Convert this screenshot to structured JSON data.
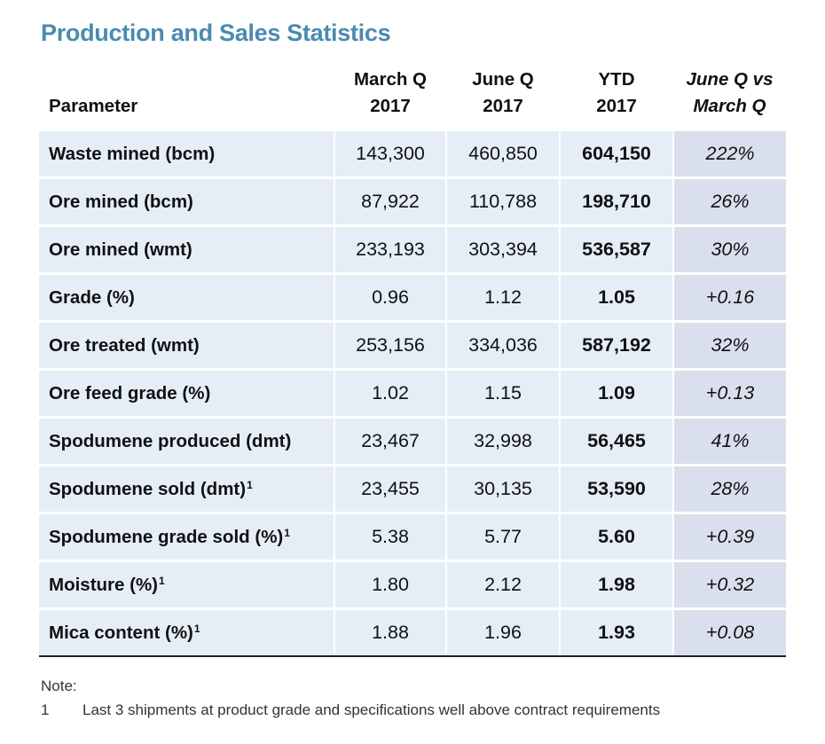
{
  "title": "Production and Sales Statistics",
  "table": {
    "headers": [
      {
        "lines": [
          "Parameter"
        ]
      },
      {
        "lines": [
          "March Q",
          "2017"
        ]
      },
      {
        "lines": [
          "June Q",
          "2017"
        ]
      },
      {
        "lines": [
          "YTD",
          "2017"
        ]
      },
      {
        "lines": [
          "June Q vs",
          "March Q"
        ]
      }
    ],
    "rows": [
      {
        "param": "Waste mined (bcm)",
        "sup": "",
        "march": "143,300",
        "june": "460,850",
        "ytd": "604,150",
        "vs": "222%"
      },
      {
        "param": "Ore mined (bcm)",
        "sup": "",
        "march": "87,922",
        "june": "110,788",
        "ytd": "198,710",
        "vs": "26%"
      },
      {
        "param": "Ore mined (wmt)",
        "sup": "",
        "march": "233,193",
        "june": "303,394",
        "ytd": "536,587",
        "vs": "30%"
      },
      {
        "param": "Grade (%)",
        "sup": "",
        "march": "0.96",
        "june": "1.12",
        "ytd": "1.05",
        "vs": "+0.16"
      },
      {
        "param": "Ore treated (wmt)",
        "sup": "",
        "march": "253,156",
        "june": "334,036",
        "ytd": "587,192",
        "vs": "32%"
      },
      {
        "param": "Ore feed grade (%)",
        "sup": "",
        "march": "1.02",
        "june": "1.15",
        "ytd": "1.09",
        "vs": "+0.13"
      },
      {
        "param": "Spodumene produced (dmt)",
        "sup": "",
        "march": "23,467",
        "june": "32,998",
        "ytd": "56,465",
        "vs": "41%"
      },
      {
        "param": "Spodumene sold (dmt)",
        "sup": "1",
        "march": "23,455",
        "june": "30,135",
        "ytd": "53,590",
        "vs": "28%"
      },
      {
        "param": "Spodumene grade sold (%)",
        "sup": "1",
        "march": "5.38",
        "june": "5.77",
        "ytd": "5.60",
        "vs": "+0.39"
      },
      {
        "param": "Moisture (%)",
        "sup": "1",
        "march": "1.80",
        "june": "2.12",
        "ytd": "1.98",
        "vs": "+0.32"
      },
      {
        "param": "Mica content (%)",
        "sup": "1",
        "march": "1.88",
        "june": "1.96",
        "ytd": "1.93",
        "vs": "+0.08"
      }
    ]
  },
  "note": {
    "label": "Note:",
    "footnote_number": "1",
    "footnote_text": "Last 3 shipments at product grade and specifications well above contract requirements"
  },
  "colors": {
    "title": "#4a8bb0",
    "cell_bg": "#e5eef7",
    "last_col_bg": "#dadfee"
  }
}
